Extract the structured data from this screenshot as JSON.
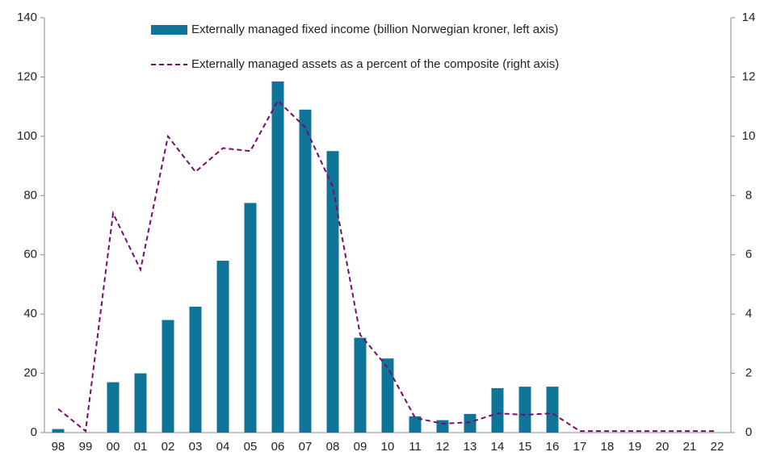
{
  "chart_data": {
    "type": "bar_line",
    "categories": [
      "98",
      "99",
      "00",
      "01",
      "02",
      "03",
      "04",
      "05",
      "06",
      "07",
      "08",
      "09",
      "10",
      "11",
      "12",
      "13",
      "14",
      "15",
      "16",
      "17",
      "18",
      "19",
      "20",
      "21",
      "22"
    ],
    "series": [
      {
        "name": "Externally managed fixed income (billion Norwegian kroner, left axis)",
        "type": "bar",
        "color": "#0e7599",
        "values": [
          1.2,
          0,
          17,
          20,
          38,
          42.5,
          58,
          77.5,
          118.5,
          109,
          95,
          32,
          25,
          5.5,
          4.2,
          6.3,
          15,
          15.5,
          15.5,
          0,
          0,
          0,
          0,
          0,
          0
        ]
      },
      {
        "name": "Externally managed assets as a percent of the composite (right axis)",
        "type": "line",
        "axis": "y2",
        "color": "#7b0a6e",
        "dashed": true,
        "values": [
          0.8,
          0.05,
          7.4,
          5.5,
          10,
          8.8,
          9.6,
          9.5,
          11.2,
          10.3,
          8.3,
          3.3,
          2.2,
          0.5,
          0.3,
          0.35,
          0.65,
          0.6,
          0.65,
          0.05,
          0.05,
          0.05,
          0.05,
          0.05,
          0.05
        ]
      }
    ],
    "ylim": [
      0,
      140
    ],
    "yticks": [
      0,
      20,
      40,
      60,
      80,
      100,
      120,
      140
    ],
    "y2lim": [
      0,
      14
    ],
    "y2ticks": [
      0,
      2,
      4,
      6,
      8,
      10,
      12,
      14
    ],
    "legend": "top"
  }
}
